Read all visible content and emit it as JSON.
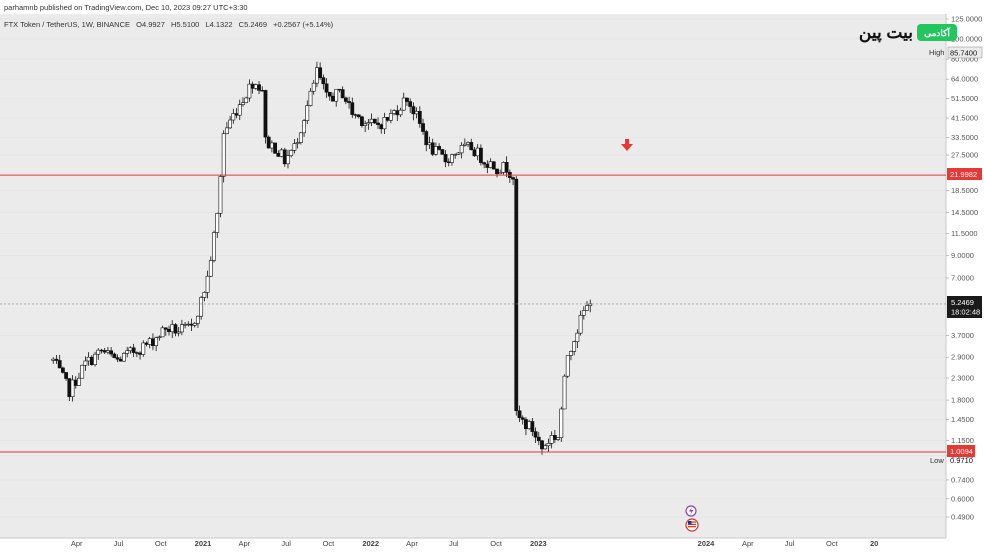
{
  "header": {
    "published": "parhamnb published on TradingView.com, Dec 10, 2023 09:27 UTC+3:30",
    "symbol": "FTX Token / TetherUS, 1W, BINANCE",
    "ohlc": {
      "open": "O4.9927",
      "high": "H5.5100",
      "low": "L4.1322",
      "close": "C5.2469",
      "change": "+0.2567 (+5.14%)"
    }
  },
  "logo": {
    "badge_text": "آکادمی",
    "brand_text": "بیت پین",
    "badge_color": "#22c55e"
  },
  "price_axis": {
    "labels": [
      "125.0000",
      "100.0000",
      "80.0000",
      "64.0000",
      "51.5000",
      "41.5000",
      "33.5000",
      "27.5000",
      "18.5000",
      "14.5000",
      "11.5000",
      "9.0000",
      "7.0000",
      "3.7000",
      "2.9000",
      "2.3000",
      "1.8000",
      "1.4500",
      "1.1500",
      "0.9710",
      "0.7400",
      "0.6000",
      "0.4900"
    ],
    "values": [
      125,
      100,
      80,
      64,
      51.5,
      41.5,
      33.5,
      27.5,
      18.5,
      14.5,
      11.5,
      9.0,
      7.0,
      3.7,
      2.9,
      2.3,
      1.8,
      1.45,
      1.15,
      0.971,
      0.74,
      0.6,
      0.49
    ],
    "high": {
      "tag": "High",
      "value": "85.7400"
    },
    "low": {
      "tag": "Low",
      "value": "0.9710"
    },
    "resistance_label": "21.9982",
    "support_label": "1.0094",
    "last_price": "5.2469",
    "countdown": "18:02:48"
  },
  "time_axis": {
    "labels": [
      "Apr",
      "Jul",
      "Oct",
      "2021",
      "Apr",
      "Jul",
      "Oct",
      "2022",
      "Apr",
      "Jul",
      "Oct",
      "2023",
      "2024",
      "Apr",
      "Jul",
      "Oct",
      "20"
    ],
    "bold": [
      false,
      false,
      false,
      true,
      false,
      false,
      false,
      true,
      false,
      false,
      false,
      true,
      true,
      false,
      false,
      false,
      true
    ]
  },
  "chart_data": {
    "type": "candlestick",
    "scale": "log",
    "ylim": [
      0.45,
      130
    ],
    "x_start": "2020-02",
    "x_end": "2025-01",
    "interval": "1W",
    "horizontal_lines": [
      {
        "value": 21.9982,
        "color": "#e53935"
      },
      {
        "value": 1.0094,
        "color": "#e53935"
      }
    ],
    "current_price": 5.2469,
    "annotations": [
      {
        "type": "arrow-down",
        "date": "2022-11-01",
        "color": "#e53935"
      }
    ],
    "anchors": [
      [
        "2020-02-10",
        2.8
      ],
      [
        "2020-03-16",
        2.0
      ],
      [
        "2020-04-20",
        2.7
      ],
      [
        "2020-05-25",
        3.1
      ],
      [
        "2020-06-29",
        2.8
      ],
      [
        "2020-08-03",
        3.1
      ],
      [
        "2020-09-07",
        3.4
      ],
      [
        "2020-10-12",
        4.0
      ],
      [
        "2020-11-09",
        3.9
      ],
      [
        "2020-12-07",
        4.0
      ],
      [
        "2020-12-28",
        5.4
      ],
      [
        "2021-01-11",
        7.0
      ],
      [
        "2021-02-01",
        14.0
      ],
      [
        "2021-02-15",
        35.0
      ],
      [
        "2021-03-08",
        43.0
      ],
      [
        "2021-04-05",
        55.0
      ],
      [
        "2021-04-19",
        62.0
      ],
      [
        "2021-05-10",
        58.0
      ],
      [
        "2021-05-17",
        32.0
      ],
      [
        "2021-06-07",
        30.0
      ],
      [
        "2021-06-28",
        26.0
      ],
      [
        "2021-07-19",
        30.0
      ],
      [
        "2021-08-09",
        42.0
      ],
      [
        "2021-08-30",
        60.0
      ],
      [
        "2021-09-06",
        70.0
      ],
      [
        "2021-09-27",
        52.0
      ],
      [
        "2021-11-01",
        55.0
      ],
      [
        "2021-11-22",
        44.0
      ],
      [
        "2021-12-20",
        40.0
      ],
      [
        "2022-01-10",
        38.0
      ],
      [
        "2022-02-07",
        41.0
      ],
      [
        "2022-03-21",
        52.0
      ],
      [
        "2022-04-11",
        42.0
      ],
      [
        "2022-05-09",
        30.0
      ],
      [
        "2022-06-13",
        26.0
      ],
      [
        "2022-07-11",
        29.0
      ],
      [
        "2022-08-08",
        30.0
      ],
      [
        "2022-09-05",
        26.0
      ],
      [
        "2022-10-03",
        24.0
      ],
      [
        "2022-10-24",
        24.0
      ],
      [
        "2022-11-07",
        22.0
      ],
      [
        "2022-11-14",
        1.5
      ],
      [
        "2022-12-19",
        1.3
      ],
      [
        "2023-01-09",
        1.05
      ],
      [
        "2023-01-30",
        1.2
      ],
      [
        "2023-02-13",
        1.2
      ],
      [
        "2023-03-06",
        3.0
      ],
      [
        "2023-04-10",
        4.8
      ],
      [
        "2023-04-24",
        5.2469
      ]
    ]
  }
}
